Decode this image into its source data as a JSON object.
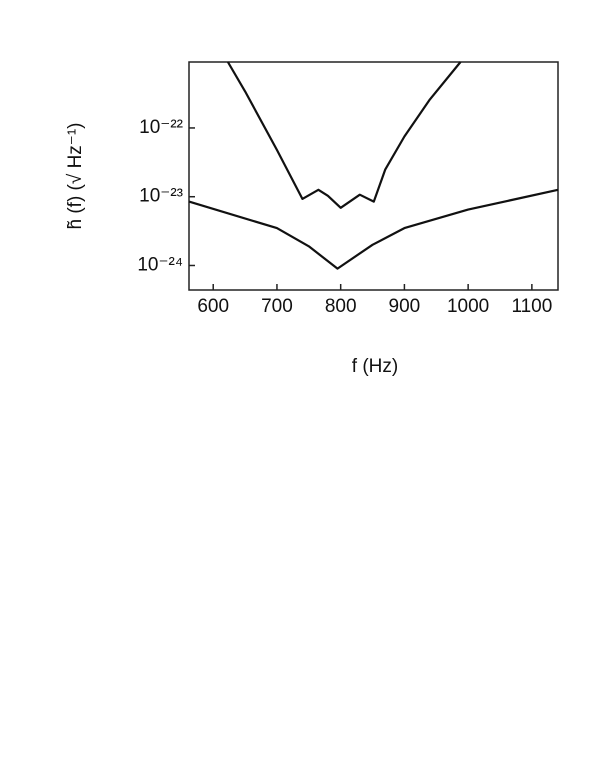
{
  "chart_data": {
    "type": "line",
    "x_label": "f (Hz)",
    "y_label": "h̃ (f) (√ Hz⁻¹)",
    "log_y": true,
    "xlim": [
      562,
      1141
    ],
    "ylim": [
      4.4e-25,
      9.1e-22
    ],
    "xticks": [
      600,
      700,
      800,
      900,
      1000,
      1100
    ],
    "yticks": [
      {
        "value": 1e-24,
        "label": "10⁻²⁴"
      },
      {
        "value": 1e-23,
        "label": "10⁻²³"
      },
      {
        "value": 1e-22,
        "label": "10⁻²²"
      }
    ],
    "series": [
      {
        "color": "#111111",
        "x": [
          623,
          650,
          700,
          740,
          765,
          780,
          800,
          830,
          852,
          870,
          900,
          940,
          988
        ],
        "values": [
          9.1e-22,
          3.4e-22,
          4.8e-23,
          9.3e-24,
          1.26e-23,
          1.03e-23,
          6.9e-24,
          1.07e-23,
          8.5e-24,
          2.5e-23,
          7.5e-23,
          2.6e-22,
          9.1e-22
        ]
      },
      {
        "color": "#111111",
        "x": [
          562,
          700,
          750,
          795,
          850,
          900,
          1000,
          1141
        ],
        "values": [
          8.5e-24,
          3.5e-24,
          1.9e-24,
          9e-25,
          2e-24,
          3.5e-24,
          6.5e-24,
          1.26e-23
        ]
      }
    ]
  }
}
